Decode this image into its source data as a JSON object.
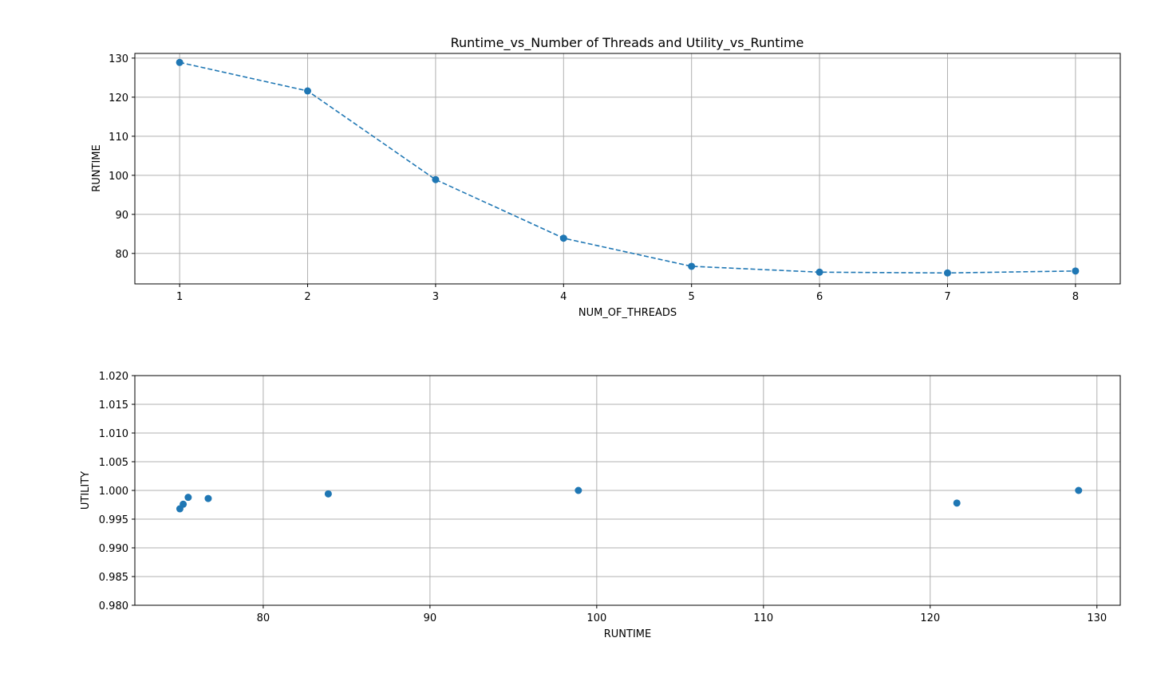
{
  "figure": {
    "title": "Runtime_vs_Number of Threads and Utility_vs_Runtime"
  },
  "chart_data": [
    {
      "type": "line",
      "title": "Runtime_vs_Number of Threads and Utility_vs_Runtime",
      "xlabel": "NUM_OF_THREADS",
      "ylabel": "RUNTIME",
      "xlim": [
        0.65,
        8.35
      ],
      "ylim": [
        72.2,
        131.2
      ],
      "xticks": [
        1,
        2,
        3,
        4,
        5,
        6,
        7,
        8
      ],
      "yticks": [
        80,
        90,
        100,
        110,
        120,
        130
      ],
      "grid": true,
      "line_style": "dashed",
      "markers": true,
      "color": "#1f77b4",
      "x": [
        1,
        2,
        3,
        4,
        5,
        6,
        7,
        8
      ],
      "y": [
        128.9,
        121.6,
        98.9,
        83.9,
        76.7,
        75.2,
        75.0,
        75.5
      ]
    },
    {
      "type": "scatter",
      "xlabel": "RUNTIME",
      "ylabel": "UTILITY",
      "xlim": [
        72.3,
        131.4
      ],
      "ylim": [
        0.98,
        1.02
      ],
      "xticks": [
        80,
        90,
        100,
        110,
        120,
        130
      ],
      "yticks": [
        0.98,
        0.985,
        0.99,
        0.995,
        1.0,
        1.005,
        1.01,
        1.015,
        1.02
      ],
      "ytick_labels": [
        "0.980",
        "0.985",
        "0.990",
        "0.995",
        "1.000",
        "1.005",
        "1.010",
        "1.015",
        "1.020"
      ],
      "grid": true,
      "color": "#1f77b4",
      "x": [
        128.9,
        121.6,
        98.9,
        83.9,
        76.7,
        75.2,
        75.0,
        75.5
      ],
      "y": [
        1.0,
        0.9978,
        1.0,
        0.9994,
        0.9986,
        0.9976,
        0.9968,
        0.9988
      ]
    }
  ]
}
